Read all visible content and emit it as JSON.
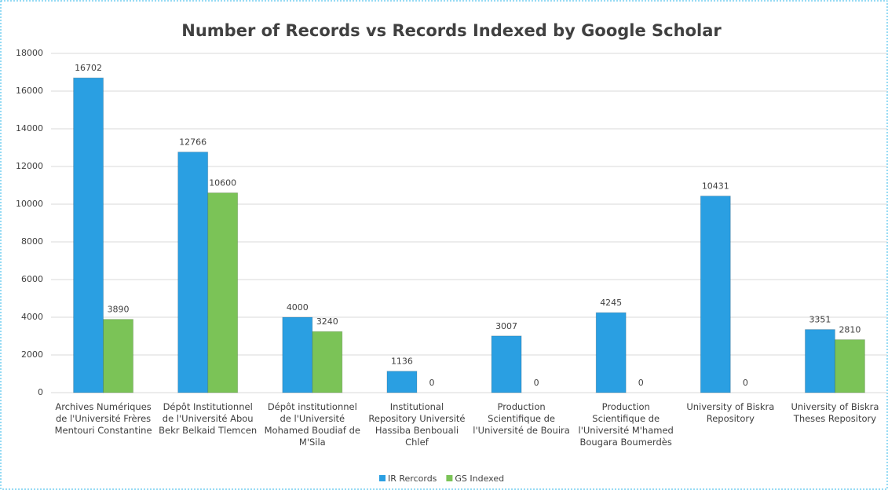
{
  "chart_data": {
    "type": "bar",
    "title": "Number of Records vs Records Indexed by Google Scholar",
    "categories": [
      "Archives Numériques de l'Université Frères Mentouri Constantine",
      "Dépôt Institutionnel de l'Université Abou Bekr Belkaid Tlemcen",
      "Dépôt institutionnel de l'Université Mohamed Boudiaf de M'Sila",
      "Institutional Repository Université Hassiba Benbouali Chlef",
      "Production Scientifique de l'Université de Bouira",
      "Production Scientifique de l'Université M'hamed Bougara Boumerdès",
      "University of Biskra Repository",
      "University of Biskra Theses Repository"
    ],
    "series": [
      {
        "name": "IR Rercords",
        "color": "#2a9fe2",
        "values": [
          16702,
          12766,
          4000,
          1136,
          3007,
          4245,
          10431,
          3351
        ]
      },
      {
        "name": "GS Indexed",
        "color": "#7bc357",
        "values": [
          3890,
          10600,
          3240,
          0,
          0,
          0,
          0,
          2810
        ]
      }
    ],
    "ylim": [
      0,
      18000
    ],
    "yticks": [
      0,
      2000,
      4000,
      6000,
      8000,
      10000,
      12000,
      14000,
      16000,
      18000
    ],
    "grid": true,
    "legend": "bottom"
  }
}
